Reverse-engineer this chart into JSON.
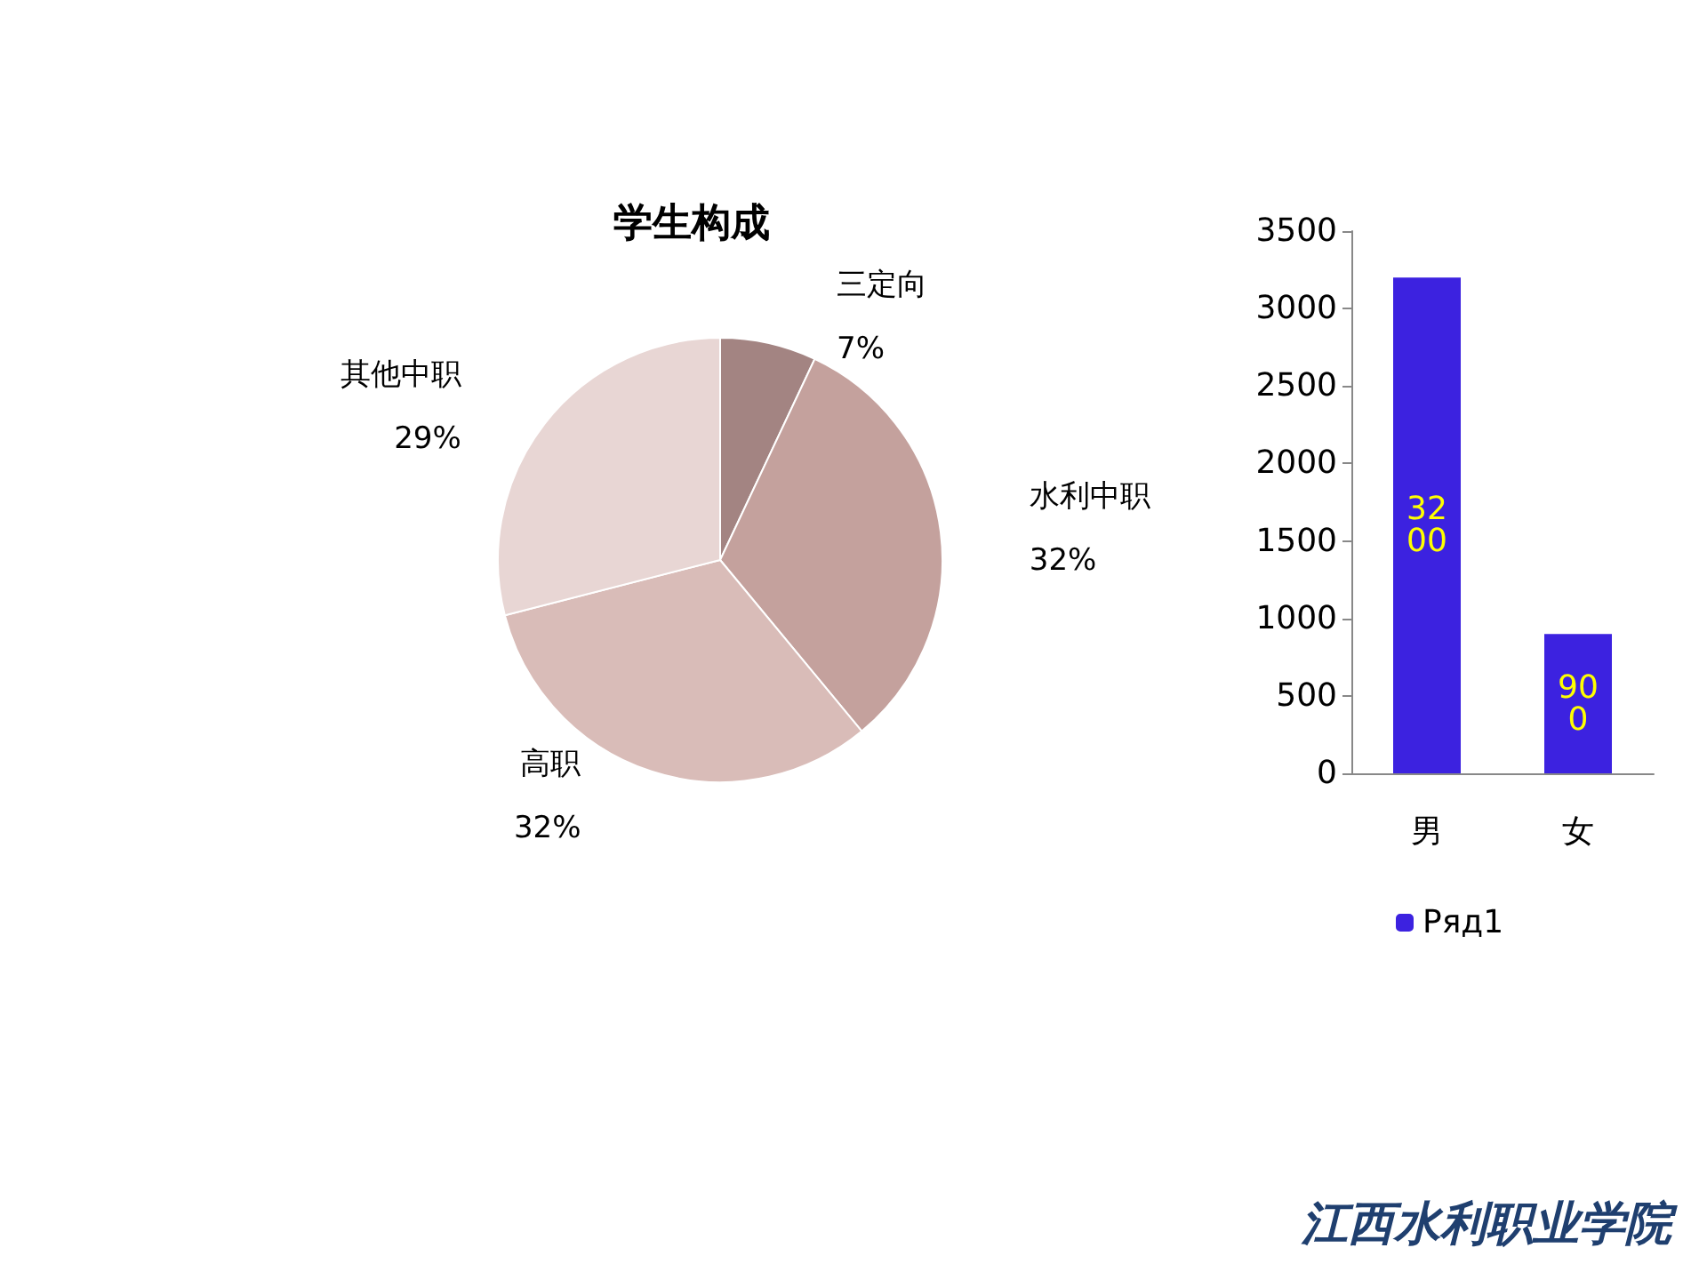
{
  "chart_data": [
    {
      "type": "pie",
      "title": "学生构成",
      "categories": [
        "三定向",
        "水利中职",
        "高职",
        "其他中职"
      ],
      "values": [
        7,
        32,
        32,
        29
      ],
      "value_labels": [
        "7%",
        "32%",
        "32%",
        "29%"
      ],
      "colors": [
        "#a38482",
        "#c4a19d",
        "#d9bcb8",
        "#e8d6d4"
      ],
      "data_labels": true,
      "legend": false
    },
    {
      "type": "bar",
      "categories": [
        "男",
        "女"
      ],
      "series": [
        {
          "name": "Ряд1",
          "color": "#3c22e0",
          "values": [
            3200,
            900
          ]
        }
      ],
      "ylim": [
        0,
        3500
      ],
      "yticks": [
        0,
        500,
        1000,
        1500,
        2000,
        2500,
        3000,
        3500
      ],
      "grid": false,
      "legend": "bottom",
      "data_labels": true,
      "annotations": [
        "江西水利职业学院"
      ]
    }
  ]
}
